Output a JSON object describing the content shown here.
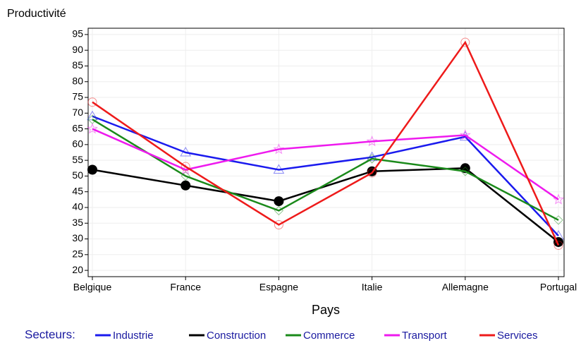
{
  "chart_data": {
    "type": "line",
    "y_label": "Productivité",
    "x_label": "Pays",
    "legend_title": "Secteurs:",
    "categories": [
      "Belgique",
      "France",
      "Espagne",
      "Italie",
      "Allemagne",
      "Portugal"
    ],
    "ylim": [
      18,
      97
    ],
    "yticks": [
      20,
      25,
      30,
      35,
      40,
      45,
      50,
      55,
      60,
      65,
      70,
      75,
      80,
      85,
      90,
      95
    ],
    "grid": true,
    "series": [
      {
        "name": "Industrie",
        "color": "#1a1aee",
        "marker": "triangle",
        "values": [
          69,
          57.5,
          52,
          56,
          62.5,
          31
        ]
      },
      {
        "name": "Construction",
        "color": "#000000",
        "marker": "filled-circle",
        "values": [
          52,
          47,
          42,
          51.5,
          52.5,
          29
        ]
      },
      {
        "name": "Commerce",
        "color": "#1a8a1a",
        "marker": "diamond",
        "values": [
          68,
          50,
          39,
          55.5,
          51.5,
          36
        ]
      },
      {
        "name": "Transport",
        "color": "#ee1aee",
        "marker": "star",
        "values": [
          65,
          52,
          58.5,
          61,
          63,
          42.5
        ]
      },
      {
        "name": "Services",
        "color": "#ee1a1a",
        "marker": "circle",
        "values": [
          73.5,
          53,
          34.5,
          51,
          92.5,
          28
        ]
      }
    ]
  }
}
